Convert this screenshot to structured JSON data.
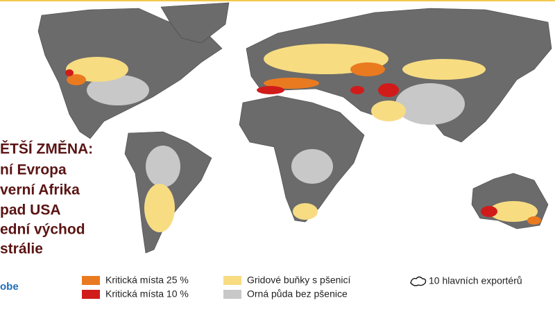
{
  "headline": {
    "lines": [
      "ĚTŠÍ ZMĚNA:",
      "ní Evropa",
      "verní Afrika",
      "pad USA",
      "ední východ",
      "strálie"
    ]
  },
  "legend": {
    "items": [
      {
        "label": "Kritická místa 25 %"
      },
      {
        "label": "Kritická místa 10 %"
      },
      {
        "label": "Gridové buňky s pšenicí"
      },
      {
        "label": "Orná půda bez pšenice"
      },
      {
        "label": "10 hlavních exportérů"
      }
    ]
  },
  "logo": {
    "text": "obe"
  }
}
